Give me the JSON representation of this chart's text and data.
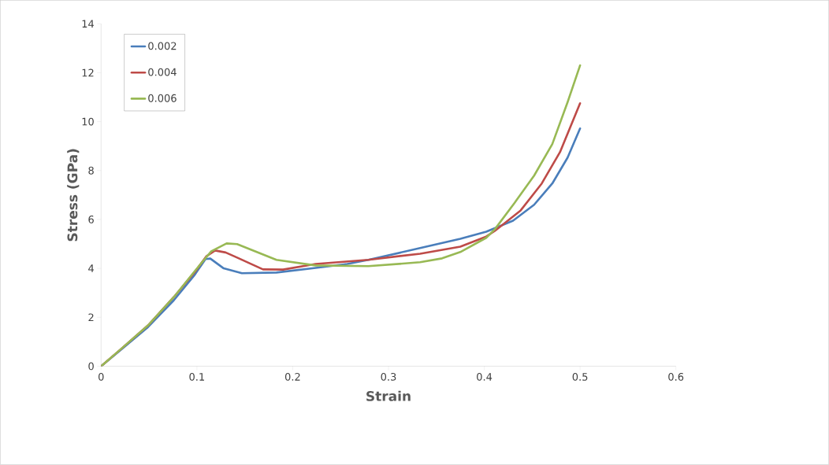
{
  "chart_data": {
    "type": "line",
    "xlabel": "Strain",
    "ylabel": "Stress (GPa)",
    "xlim": [
      0,
      0.6
    ],
    "ylim": [
      0,
      14
    ],
    "xticks": [
      0,
      0.1,
      0.2,
      0.3,
      0.4,
      0.5,
      0.6
    ],
    "yticks": [
      0,
      2,
      4,
      6,
      8,
      10,
      12,
      14
    ],
    "grid": false,
    "legend": "top left",
    "marker": "none",
    "line_style": "solid",
    "series": [
      {
        "name": "0.002",
        "color": "#4a7ebb",
        "x": [
          0,
          0.021,
          0.049,
          0.076,
          0.098,
          0.109,
          0.114,
          0.128,
          0.147,
          0.183,
          0.224,
          0.257,
          0.279,
          0.333,
          0.375,
          0.402,
          0.43,
          0.452,
          0.471,
          0.487,
          0.5
        ],
        "values": [
          0,
          0.68,
          1.6,
          2.7,
          3.75,
          4.38,
          4.4,
          4.0,
          3.8,
          3.83,
          4.02,
          4.18,
          4.35,
          4.83,
          5.21,
          5.5,
          5.95,
          6.6,
          7.47,
          8.53,
          9.72
        ]
      },
      {
        "name": "0.004",
        "color": "#be4b48",
        "x": [
          0,
          0.021,
          0.049,
          0.076,
          0.098,
          0.11,
          0.119,
          0.13,
          0.142,
          0.169,
          0.19,
          0.224,
          0.279,
          0.333,
          0.375,
          0.402,
          0.411,
          0.438,
          0.46,
          0.479,
          0.5
        ],
        "values": [
          0,
          0.71,
          1.67,
          2.83,
          3.86,
          4.5,
          4.73,
          4.65,
          4.44,
          3.96,
          3.95,
          4.18,
          4.35,
          4.6,
          4.89,
          5.3,
          5.53,
          6.37,
          7.47,
          8.75,
          10.75
        ]
      },
      {
        "name": "0.006",
        "color": "#98b954",
        "x": [
          0,
          0.021,
          0.049,
          0.076,
          0.098,
          0.115,
          0.131,
          0.142,
          0.183,
          0.224,
          0.279,
          0.333,
          0.356,
          0.375,
          0.402,
          0.411,
          0.432,
          0.452,
          0.471,
          0.487,
          0.5
        ],
        "values": [
          0,
          0.71,
          1.67,
          2.83,
          3.9,
          4.7,
          5.02,
          4.99,
          4.35,
          4.12,
          4.09,
          4.25,
          4.41,
          4.67,
          5.25,
          5.6,
          6.7,
          7.79,
          9.08,
          10.8,
          12.3
        ]
      }
    ]
  }
}
